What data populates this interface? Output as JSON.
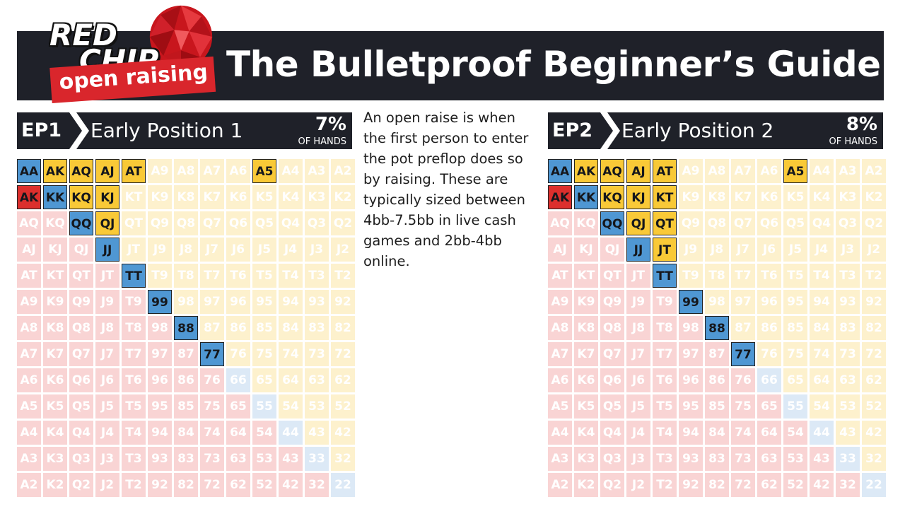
{
  "header": {
    "logo_line1": "RED",
    "logo_line2": "CHIP",
    "logo_banner": "open raising",
    "title": "The Bulletproof Beginner’s Guide"
  },
  "description": "An open raise is when the first person to enter the pot preflop does so by raising. These are typically sized between 4bb-7.5bb in live cash games and 2bb-4bb online.",
  "colors": {
    "pair": "#4f97d3",
    "suited": "#f9c937",
    "offsuit": "#dc2f2d",
    "header_bg": "#1f2129",
    "pair_faded": "#dce9f6",
    "suited_faded": "#fdf1cd",
    "offsuit_faded": "#f9d4d4"
  },
  "ranks": [
    "A",
    "K",
    "Q",
    "J",
    "T",
    "9",
    "8",
    "7",
    "6",
    "5",
    "4",
    "3",
    "2"
  ],
  "charts": [
    {
      "code": "EP1",
      "name": "Early Position 1",
      "percent": "7%",
      "percent_label": "OF HANDS",
      "raise_hands": [
        "AA",
        "AK",
        "AQ",
        "AJ",
        "AT",
        "A5",
        "AKo",
        "KK",
        "KQ",
        "KJ",
        "QQ",
        "QJ",
        "JJ",
        "TT",
        "99",
        "88",
        "77"
      ]
    },
    {
      "code": "EP2",
      "name": "Early Position 2",
      "percent": "8%",
      "percent_label": "OF HANDS",
      "raise_hands": [
        "AA",
        "AK",
        "AQ",
        "AJ",
        "AT",
        "A5",
        "AKo",
        "KK",
        "KQ",
        "KJ",
        "KT",
        "QQ",
        "QJ",
        "QT",
        "JJ",
        "JT",
        "TT",
        "99",
        "88",
        "77"
      ]
    }
  ]
}
